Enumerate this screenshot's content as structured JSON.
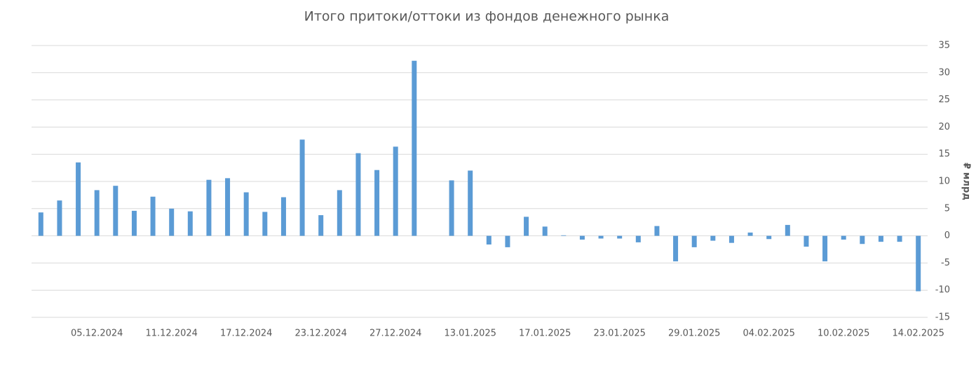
{
  "chart_data": {
    "type": "bar",
    "title": "Итого притоки/оттоки из фондов денежного рынка",
    "y_axis_label": "₽ млрд",
    "categories": [
      null,
      null,
      null,
      "05.12.2024",
      null,
      null,
      null,
      "11.12.2024",
      null,
      null,
      null,
      "17.12.2024",
      null,
      null,
      null,
      "23.12.2024",
      null,
      null,
      null,
      "27.12.2024",
      null,
      null,
      null,
      "13.01.2025",
      null,
      null,
      null,
      "17.01.2025",
      null,
      null,
      null,
      "23.01.2025",
      null,
      null,
      null,
      "29.01.2025",
      null,
      null,
      null,
      "04.02.2025",
      null,
      null,
      null,
      "10.02.2025",
      null,
      null,
      null,
      "14.02.2025"
    ],
    "values": [
      4.3,
      6.5,
      13.5,
      8.4,
      9.2,
      4.6,
      7.2,
      5.0,
      4.5,
      10.3,
      10.6,
      8.0,
      4.4,
      7.1,
      17.7,
      3.8,
      8.4,
      15.2,
      12.1,
      16.4,
      32.2,
      null,
      10.2,
      12.0,
      -1.6,
      -2.1,
      3.5,
      1.7,
      0.1,
      -0.7,
      -0.5,
      -0.5,
      -1.2,
      1.8,
      -4.7,
      -2.1,
      -0.9,
      -1.3,
      0.6,
      -0.6,
      2.0,
      -2.0,
      -4.7,
      -0.7,
      -1.5,
      -1.1,
      -1.1,
      -10.2
    ],
    "color": "#5b9bd5",
    "ylim": [
      -15,
      35
    ],
    "yticks": [
      -15,
      -10,
      -5,
      0,
      5,
      10,
      15,
      20,
      25,
      30,
      35
    ],
    "grid": true,
    "y_axis_side": "right"
  }
}
